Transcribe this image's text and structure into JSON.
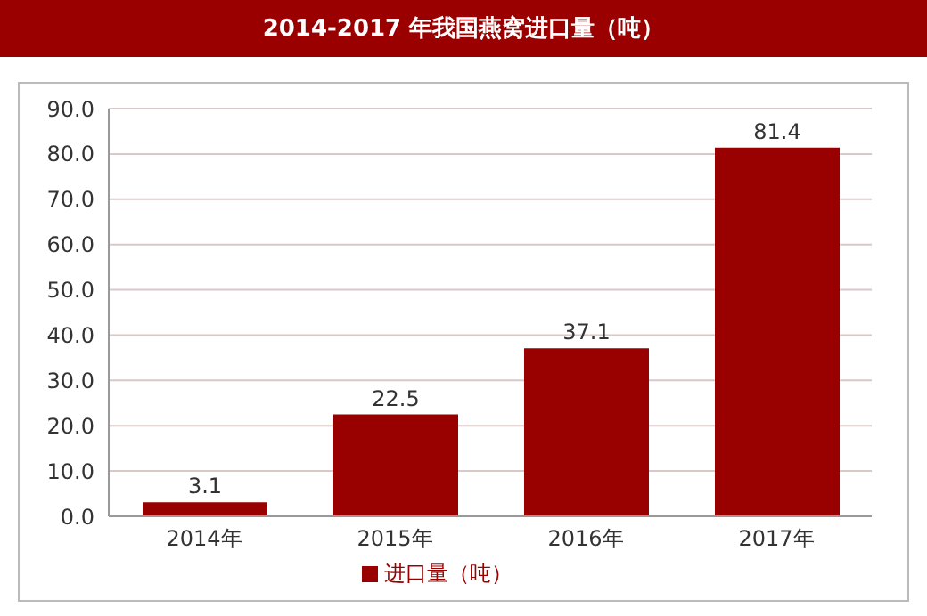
{
  "chart_data": {
    "type": "bar",
    "title": "2014-2017 年我国燕窝进口量（吨）",
    "categories": [
      "2014年",
      "2015年",
      "2016年",
      "2017年"
    ],
    "series": [
      {
        "name": "进口量（吨）",
        "color": "#990000",
        "values": [
          3.1,
          22.5,
          37.1,
          81.4
        ]
      }
    ],
    "ylim": [
      0,
      90
    ],
    "yticks": [
      {
        "value": 0,
        "label": "0.0"
      },
      {
        "value": 10,
        "label": "10.0"
      },
      {
        "value": 20,
        "label": "20.0"
      },
      {
        "value": 30,
        "label": "30.0"
      },
      {
        "value": 40,
        "label": "40.0"
      },
      {
        "value": 50,
        "label": "50.0"
      },
      {
        "value": 60,
        "label": "60.0"
      },
      {
        "value": 70,
        "label": "70.0"
      },
      {
        "value": 80,
        "label": "80.0"
      },
      {
        "value": 90,
        "label": "90.0"
      }
    ],
    "grid": "y",
    "legend": "bottom",
    "data_labels": true
  }
}
